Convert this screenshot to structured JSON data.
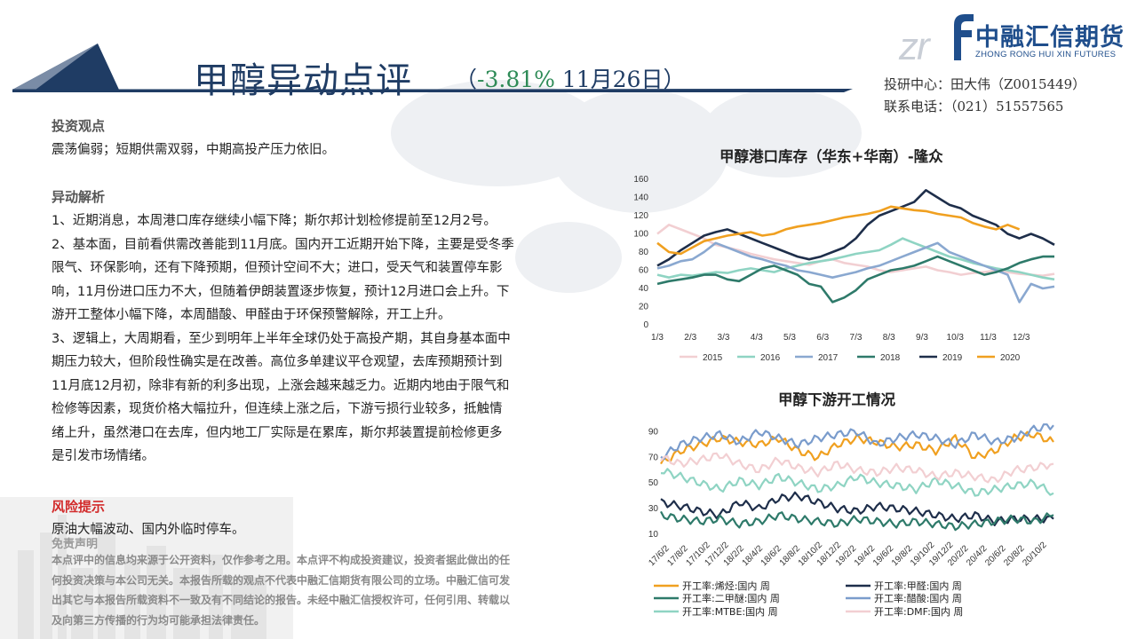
{
  "header": {
    "title": "甲醇异动点评",
    "subtitle_open": "（",
    "subtitle_pct": "-3.81%",
    "subtitle_date": " 11月26日）",
    "contact_line1": "投研中心：田大伟（Z0015449）",
    "contact_line2": "联系电话：（021）51557565"
  },
  "logo": {
    "name": "中融汇信期货",
    "english": "ZHONG RONG HUI XIN FUTURES",
    "mark_text": "zr",
    "brand_color": "#1f4e8c"
  },
  "sections": {
    "view_heading": "投资观点",
    "view_text": "震荡偏弱；短期供需双弱，中期高投产压力依旧。",
    "analysis_heading": "异动解析",
    "analysis_lines": [
      "1、近期消息，本周港口库存继续小幅下降；斯尔邦计划检修提前至12月2号。",
      "2、基本面，目前看供需改善能到11月底。国内开工近期开始下降，主要是受冬季",
      "限气、环保影响，还有下降预期，但预计空间不大；进口，受天气和装置停车影",
      "响，11月份进口压力不大，但随着伊朗装置逐步恢复，预计12月进口会上升。下",
      "游开工整体小幅下降，本周醋酸、甲醛由于环保预警解除，开工上升。",
      "3、逻辑上，大周期看，至少到明年上半年全球仍处于高投产期，其自身基本面中",
      "期压力较大，但阶段性确实是在改善。高位多单建议平仓观望，去库预期预计到",
      "11月底12月初，除非有新的利多出现，上涨会越来越乏力。近期内地由于限气和",
      "检修等因素，现货价格大幅拉升，但连续上涨之后，下游亏损行业较多，抵触情",
      "绪上升，虽然港口在去库，但内地工厂实际是在累库，斯尔邦装置提前检修更多",
      "是引发市场情绪。"
    ],
    "risk_heading": "风险提示",
    "risk_text": "原油大幅波动、国内外临时停车。",
    "disclaimer_heading": "免责声明",
    "disclaimer_lines": [
      "本点评中的信息均来源于公开资料，仅作参考之用。本点评不构成投资建议，投资者据此做出的任",
      "何投资决策与本公司无关。本报告所载的观点不代表中融汇信期货有限公司的立场。中融汇信可发",
      "出其它与本报告所载资料不一致及有不同结论的报告。未经中融汇信授权许可，任何引用、转载以",
      "及向第三方传播的行为均可能承担法律责任。"
    ]
  },
  "chart_data": [
    {
      "type": "line",
      "title": "甲醇港口库存（华东+华南）-隆众",
      "xlabel": "",
      "ylabel": "",
      "x_ticks": [
        "1/3",
        "2/3",
        "3/3",
        "4/3",
        "5/3",
        "6/3",
        "7/3",
        "8/3",
        "9/3",
        "10/3",
        "11/3",
        "12/3"
      ],
      "ylim": [
        0,
        160
      ],
      "y_ticks": [
        0,
        20,
        40,
        60,
        80,
        100,
        120,
        140,
        160
      ],
      "legend_position": "bottom",
      "series": [
        {
          "name": "2015",
          "color": "#f2cfd2",
          "values": [
            100,
            110,
            105,
            100,
            95,
            88,
            85,
            82,
            78,
            75,
            72,
            70,
            68,
            66,
            70,
            72,
            68,
            66,
            64,
            60,
            58,
            60,
            62,
            64,
            60,
            58,
            55,
            57,
            58,
            60,
            58,
            56,
            55,
            54,
            56
          ]
        },
        {
          "name": "2016",
          "color": "#8fd4c3",
          "values": [
            55,
            52,
            55,
            54,
            56,
            58,
            57,
            60,
            62,
            60,
            58,
            62,
            65,
            68,
            70,
            72,
            75,
            78,
            80,
            82,
            88,
            95,
            90,
            85,
            80,
            75,
            72,
            68,
            65,
            62,
            60,
            58,
            55,
            52,
            50
          ]
        },
        {
          "name": "2017",
          "color": "#8aa8d0",
          "values": [
            62,
            65,
            70,
            72,
            80,
            90,
            85,
            80,
            75,
            72,
            68,
            65,
            60,
            58,
            55,
            52,
            55,
            58,
            62,
            65,
            70,
            75,
            80,
            85,
            90,
            80,
            75,
            70,
            65,
            60,
            55,
            25,
            45,
            40,
            42
          ]
        },
        {
          "name": "2018",
          "color": "#2e7a6a",
          "values": [
            45,
            48,
            50,
            52,
            55,
            55,
            50,
            48,
            55,
            62,
            65,
            60,
            55,
            45,
            42,
            25,
            30,
            38,
            50,
            55,
            60,
            62,
            65,
            70,
            75,
            70,
            65,
            60,
            55,
            58,
            62,
            68,
            72,
            75,
            75
          ]
        },
        {
          "name": "2019",
          "color": "#1e2e4a",
          "values": [
            65,
            72,
            82,
            90,
            98,
            102,
            105,
            100,
            95,
            90,
            85,
            80,
            75,
            72,
            75,
            80,
            85,
            95,
            110,
            120,
            125,
            130,
            135,
            148,
            140,
            132,
            128,
            120,
            115,
            110,
            100,
            95,
            100,
            95,
            88
          ]
        },
        {
          "name": "2020",
          "color": "#f0a020",
          "values": [
            90,
            80,
            78,
            85,
            92,
            95,
            98,
            100,
            102,
            98,
            100,
            105,
            108,
            110,
            112,
            115,
            118,
            120,
            122,
            125,
            130,
            128,
            126,
            125,
            122,
            120,
            118,
            112,
            108,
            105,
            110,
            105
          ]
        }
      ]
    },
    {
      "type": "line",
      "title": "甲醇下游开工情况",
      "xlabel": "",
      "ylabel": "",
      "x_ticks": [
        "17/6/2",
        "17/8/2",
        "17/10/2",
        "17/12/2",
        "18/2/2",
        "18/4/2",
        "18/6/2",
        "18/8/2",
        "18/10/2",
        "18/12/2",
        "19/2/2",
        "19/4/2",
        "19/6/2",
        "19/8/2",
        "19/10/2",
        "19/12/2",
        "20/2/2",
        "20/4/2",
        "20/6/2",
        "20/8/2",
        "20/10/2"
      ],
      "ylim": [
        10,
        100
      ],
      "y_ticks": [
        10,
        30,
        50,
        70,
        90
      ],
      "legend_position": "bottom",
      "series": [
        {
          "name": "开工率:烯烃:国内 周",
          "color": "#f0a020",
          "values": [
            65,
            75,
            80,
            85,
            82,
            80,
            85,
            75,
            70,
            80,
            85,
            82,
            78,
            80,
            75,
            85,
            70,
            75,
            85,
            88,
            82
          ]
        },
        {
          "name": "开工率:甲醛:国内 周",
          "color": "#1e2e4a",
          "values": [
            35,
            32,
            28,
            25,
            35,
            30,
            38,
            40,
            35,
            30,
            28,
            32,
            30,
            28,
            25,
            22,
            25,
            20,
            22,
            22,
            22
          ]
        },
        {
          "name": "开工率:二甲醚:国内 周",
          "color": "#2e7a6a",
          "values": [
            25,
            22,
            20,
            22,
            18,
            20,
            25,
            22,
            20,
            18,
            22,
            20,
            18,
            20,
            18,
            16,
            18,
            20,
            22,
            20,
            25
          ]
        },
        {
          "name": "开工率:醋酸:国内 周",
          "color": "#7a9ccc",
          "values": [
            70,
            80,
            85,
            88,
            82,
            90,
            85,
            80,
            85,
            88,
            90,
            80,
            85,
            88,
            85,
            80,
            88,
            82,
            85,
            92,
            95
          ]
        },
        {
          "name": "开工率:MTBE:国内 周",
          "color": "#8fd4c3",
          "values": [
            60,
            55,
            50,
            45,
            52,
            48,
            55,
            50,
            45,
            48,
            55,
            50,
            48,
            45,
            52,
            48,
            42,
            45,
            48,
            50,
            42
          ]
        },
        {
          "name": "开工率:DMF:国内 周",
          "color": "#f2cfd2",
          "values": [
            70,
            65,
            68,
            72,
            65,
            60,
            68,
            62,
            58,
            65,
            60,
            58,
            62,
            60,
            55,
            58,
            55,
            52,
            60,
            62,
            65
          ]
        }
      ]
    }
  ]
}
